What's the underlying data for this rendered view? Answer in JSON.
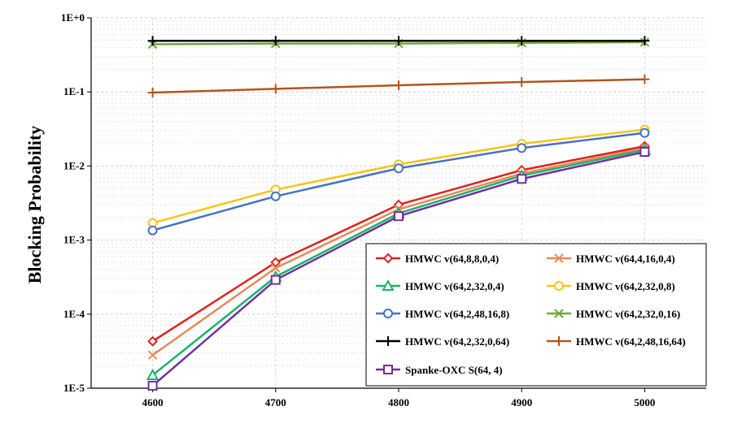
{
  "chart_data": {
    "type": "line",
    "title": "",
    "xlabel": "",
    "ylabel": "Blocking Probability",
    "x": [
      4600,
      4700,
      4800,
      4900,
      5000
    ],
    "x_tick_labels": [
      "4600",
      "4700",
      "4800",
      "4900",
      "5000"
    ],
    "xlim": [
      4550,
      5050
    ],
    "ylim": [
      1e-05,
      1
    ],
    "y_scale": "log",
    "y_tick_values": [
      1e-05,
      0.0001,
      0.001,
      0.01,
      0.1,
      1
    ],
    "y_tick_labels": [
      "1E-5",
      "1E-4",
      "1E-3",
      "1E-2",
      "1E-1",
      "1E+0"
    ],
    "grid": "dotted",
    "legend_position": "bottom-right",
    "series": [
      {
        "name": "HMWC v(64,8,8,0,4)",
        "color": "#e0201b",
        "marker": "diamond",
        "values": [
          4.3e-05,
          0.0005,
          0.003,
          0.0088,
          0.0185
        ]
      },
      {
        "name": "HMWC v(64,4,16,0,4)",
        "color": "#e8895a",
        "marker": "x",
        "values": [
          2.8e-05,
          0.00042,
          0.0026,
          0.0079,
          0.0175
        ]
      },
      {
        "name": "HMWC v(64,2,32,0,4)",
        "color": "#1cb36a",
        "marker": "triangle",
        "values": [
          1.5e-05,
          0.00032,
          0.0023,
          0.0074,
          0.0165
        ]
      },
      {
        "name": "HMWC v(64,2,32,0,8)",
        "color": "#f5c518",
        "marker": "circle",
        "values": [
          0.0017,
          0.0048,
          0.0105,
          0.02,
          0.031
        ]
      },
      {
        "name": "HMWC v(64,2,48,16,8)",
        "color": "#4472c4",
        "marker": "circle",
        "values": [
          0.00135,
          0.0039,
          0.0093,
          0.0175,
          0.028
        ]
      },
      {
        "name": "HMWC v(64,2,32,0,16)",
        "color": "#6fa83a",
        "marker": "x",
        "values": [
          0.44,
          0.45,
          0.45,
          0.46,
          0.47
        ]
      },
      {
        "name": "HMWC v(64,2,32,0,64)",
        "color": "#000000",
        "marker": "plus",
        "values": [
          0.49,
          0.49,
          0.49,
          0.49,
          0.49
        ]
      },
      {
        "name": "HMWC v(64,2,48,16,64)",
        "color": "#b5541c",
        "marker": "plus",
        "values": [
          0.098,
          0.11,
          0.123,
          0.136,
          0.148
        ]
      },
      {
        "name": "Spanke-OXC S(64, 4)",
        "color": "#7030a0",
        "marker": "square",
        "values": [
          1.08e-05,
          0.00029,
          0.0021,
          0.0067,
          0.0155
        ]
      }
    ]
  }
}
